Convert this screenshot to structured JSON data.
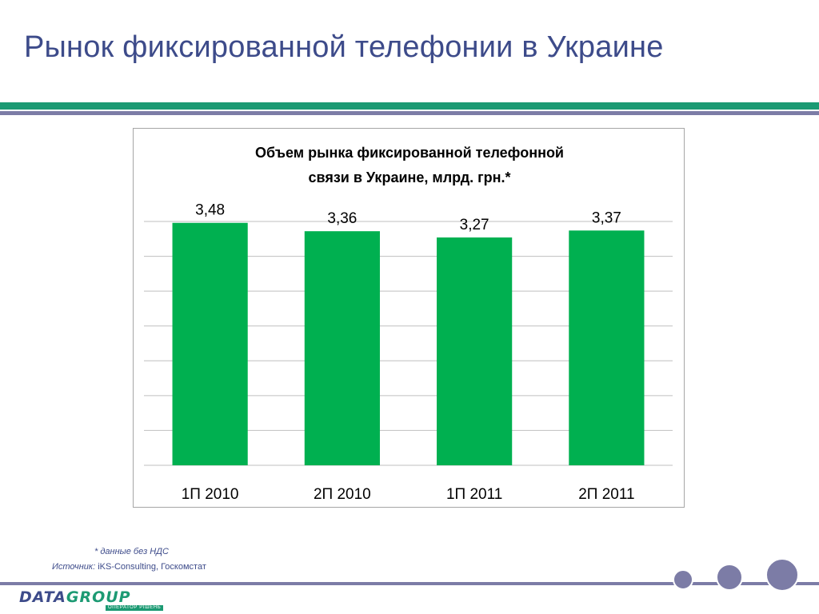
{
  "slide": {
    "title": "Рынок фиксированной телефонии в Украине"
  },
  "chart_data": {
    "type": "bar",
    "title_line1": "Объем рынка фиксированной телефонной",
    "title_line2": "связи в Украине, млрд. грн.*",
    "categories": [
      "1П 2010",
      "2П 2010",
      "1П 2011",
      "2П 2011"
    ],
    "values": [
      3.48,
      3.36,
      3.27,
      3.37
    ],
    "value_labels": [
      "3,48",
      "3,36",
      "3,27",
      "3,37"
    ],
    "bar_color": "#00b050",
    "grid": true,
    "ylim": [
      0,
      3.5
    ],
    "xlabel": "",
    "ylabel": ""
  },
  "footnotes": {
    "vat_note": "* данные без НДС",
    "source_label": "Источник:",
    "source_value": " iKS-Consulting, Госкомстат"
  },
  "logo": {
    "brand_part1": "DATA",
    "brand_part2": "GROUP",
    "tagline": "ОПЕРАТОР РІШЕНЬ"
  },
  "colors": {
    "title": "#3d4b8a",
    "band_green": "#1c9a73",
    "band_grey": "#7c7ca6"
  }
}
